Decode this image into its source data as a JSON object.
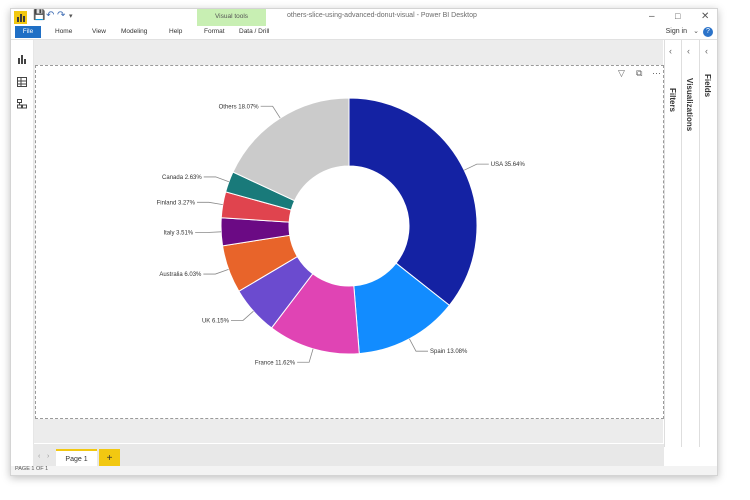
{
  "window": {
    "title": "others-slice-using-advanced-donut-visual - Power BI Desktop",
    "context_tab_group": "Visual tools"
  },
  "ribbon": {
    "file": "File",
    "tabs": [
      "Home",
      "View",
      "Modeling",
      "Help",
      "Format",
      "Data / Drill"
    ],
    "sign_in": "Sign in",
    "help_icon": "?"
  },
  "panes": {
    "filters": "Filters",
    "visualizations": "Visualizations",
    "fields": "Fields"
  },
  "pages": {
    "tabs": [
      "Page 1"
    ],
    "add_label": "+",
    "status": "PAGE 1 OF 1"
  },
  "colors": {
    "accent": "#f2c811",
    "file_button": "#1f6fc5"
  },
  "chart_data": {
    "type": "pie",
    "subtype": "donut",
    "slices": [
      {
        "label": "USA 35.64%",
        "value": 35.64,
        "color": "#1422a3"
      },
      {
        "label": "Spain 13.08%",
        "value": 13.08,
        "color": "#128cff"
      },
      {
        "label": "France 11.62%",
        "value": 11.62,
        "color": "#e044b4"
      },
      {
        "label": "UK 6.15%",
        "value": 6.15,
        "color": "#6b4bcf"
      },
      {
        "label": "Australia 6.03%",
        "value": 6.03,
        "color": "#e8642a"
      },
      {
        "label": "Italy 3.51%",
        "value": 3.51,
        "color": "#6b0a84"
      },
      {
        "label": "Finland 3.27%",
        "value": 3.27,
        "color": "#e0444e"
      },
      {
        "label": "Canada 2.63%",
        "value": 2.63,
        "color": "#197a7a"
      },
      {
        "label": "Others 18.07%",
        "value": 18.07,
        "color": "#cbcbcb"
      }
    ]
  }
}
